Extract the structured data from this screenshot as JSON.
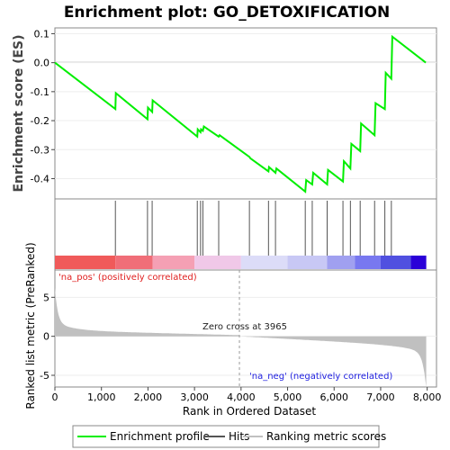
{
  "chart_data": {
    "type": "line",
    "title": "Enrichment plot: GO_DETOXIFICATION",
    "ylabel_es": "Enrichment score (ES)",
    "ylabel_metric": "Ranked list metric (PreRanked)",
    "xlabel": "Rank in Ordered Dataset",
    "es_yticks": [
      "0.1",
      "0.0",
      "-0.1",
      "-0.2",
      "-0.3",
      "-0.4"
    ],
    "metric_yticks": [
      "5",
      "0",
      "-5"
    ],
    "xticks": [
      "0",
      "1,000",
      "2,000",
      "3,000",
      "4,000",
      "5,000",
      "6,000",
      "7,000",
      "8,000"
    ],
    "xlim": [
      0,
      8200
    ],
    "es_ylim": [
      -0.47,
      0.12
    ],
    "metric_ylim": [
      -6.5,
      8.5
    ],
    "n_ranks": 7980,
    "enrichment_profile": {
      "x": [
        0,
        1300,
        1310,
        1990,
        2000,
        2090,
        2100,
        3060,
        3070,
        3130,
        3140,
        3180,
        3200,
        3520,
        3540,
        4180,
        4200,
        4590,
        4600,
        4740,
        4760,
        5380,
        5400,
        5530,
        5550,
        5850,
        5870,
        6190,
        6210,
        6350,
        6370,
        6560,
        6580,
        6870,
        6890,
        7090,
        7110,
        7230,
        7250,
        7970
      ],
      "y": [
        0.0,
        -0.16,
        -0.105,
        -0.195,
        -0.155,
        -0.17,
        -0.13,
        -0.255,
        -0.23,
        -0.24,
        -0.23,
        -0.235,
        -0.22,
        -0.255,
        -0.25,
        -0.325,
        -0.33,
        -0.375,
        -0.36,
        -0.38,
        -0.365,
        -0.445,
        -0.405,
        -0.42,
        -0.38,
        -0.42,
        -0.37,
        -0.41,
        -0.34,
        -0.365,
        -0.28,
        -0.305,
        -0.21,
        -0.25,
        -0.14,
        -0.16,
        -0.035,
        -0.055,
        0.09,
        0.0
      ],
      "name": "Enrichment profile",
      "color": "#00ee00"
    },
    "hits": [
      1300,
      1990,
      2090,
      3060,
      3130,
      3180,
      3520,
      4180,
      4590,
      4740,
      5380,
      5530,
      5850,
      6190,
      6350,
      6560,
      6870,
      7090,
      7230
    ],
    "zero_cross": 3965,
    "annotations": {
      "pos": "'na_pos' (positively correlated)",
      "neg": "'na_neg' (negatively correlated)",
      "zero": "Zero cross at 3965"
    },
    "heat_colors": [
      "#f05a5a",
      "#f06e78",
      "#f5a0b4",
      "#f0c8e8",
      "#dcdcf8",
      "#c8c8f5",
      "#a0a0f0",
      "#7878f0",
      "#5050e0",
      "#2a00d8"
    ],
    "heat_bounds": [
      0,
      1300,
      2100,
      3000,
      4000,
      5000,
      5850,
      6450,
      7000,
      7650,
      7980
    ],
    "legend": [
      {
        "label": "Enrichment profile",
        "color": "#00ee00"
      },
      {
        "label": "Hits",
        "color": "#555555"
      },
      {
        "label": "Ranking metric scores",
        "color": "#c0c0c0"
      }
    ]
  }
}
